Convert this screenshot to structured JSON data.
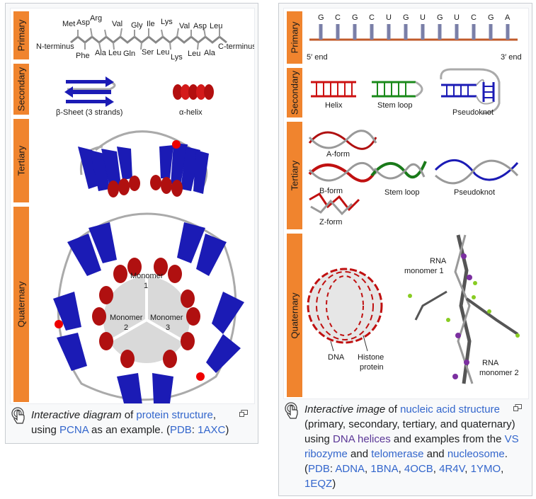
{
  "protein": {
    "tabs": [
      "Primary",
      "Secondary",
      "Tertiary",
      "Quaternary"
    ],
    "primary": {
      "residues_top": [
        "Met",
        "Asp",
        "Arg",
        "Val",
        "Gly",
        "Ile",
        "Lys",
        "Val",
        "Asp",
        "Leu"
      ],
      "residues_bottom": [
        "Phe",
        "Ala",
        "Leu",
        "Gln",
        "Ser",
        "Leu",
        "Lys",
        "Leu",
        "Ala"
      ],
      "n_terminus": "N-terminus",
      "c_terminus": "C-terminus"
    },
    "secondary": {
      "sheet_label": "β-Sheet (3 strands)",
      "helix_label": "α-helix"
    },
    "quaternary": {
      "monomer1": [
        "Monomer",
        "1"
      ],
      "monomer2": [
        "Monomer",
        "2"
      ],
      "monomer3": [
        "Monomer",
        "3"
      ]
    },
    "caption": {
      "italic": "Interactive diagram",
      "t1": " of ",
      "link1": "protein structure",
      "t2": ", using ",
      "link2": "PCNA",
      "t3": " as an example. (",
      "link3": "PDB",
      "t4": ": ",
      "link4": "1AXC",
      "t5": ")"
    }
  },
  "nucleic": {
    "tabs": [
      "Primary",
      "Secondary",
      "Tertiary",
      "Quaternary"
    ],
    "primary": {
      "bases": [
        "G",
        "C",
        "G",
        "C",
        "U",
        "G",
        "U",
        "G",
        "U",
        "C",
        "G",
        "A"
      ],
      "five_end": "5′ end",
      "three_end": "3′ end"
    },
    "secondary": {
      "helix_label": "Helix",
      "stem_loop_label": "Stem loop",
      "pseudoknot_label": "Pseudoknot"
    },
    "tertiary": {
      "a_form": "A-form",
      "b_form": "B-form",
      "z_form": "Z-form",
      "stem_loop": "Stem loop",
      "pseudoknot": "Pseudoknot"
    },
    "quaternary": {
      "dna": "DNA",
      "histone": [
        "Histone",
        "protein"
      ],
      "rna1": [
        "RNA",
        "monomer 1"
      ],
      "rna2": [
        "RNA",
        "monomer 2"
      ]
    },
    "caption": {
      "italic": "Interactive image",
      "t1": " of ",
      "link1": "nucleic acid structure",
      "t2": " (primary, secondary, tertiary, and quaternary) using ",
      "link2": "DNA helices",
      "t3": " and examples from the ",
      "link3": "VS ribozyme",
      "t4": " and ",
      "link4": "telomerase",
      "t5": " and ",
      "link5": "nucleosome",
      "t6": ". (",
      "link6": "PDB",
      "t7": ": ",
      "link7": "ADNA",
      "t8": ", ",
      "link8": "1BNA",
      "t9": ", ",
      "link9": "4OCB",
      "t10": ", ",
      "link10": "4R4V",
      "t11": ", ",
      "link11": "1YMO",
      "t12": ", ",
      "link12": "1EQZ",
      "t13": ")"
    }
  },
  "colors": {
    "tab": "#f0842e",
    "sheet": "#1b1bb5",
    "helix": "#cc1111",
    "stem": "#1a8a1a",
    "link": "#3366cc",
    "link_visited": "#5a3696",
    "monomer_disc": "#d9d9d9"
  },
  "icons": [
    "pointer-hand-icon",
    "enlarge-icon"
  ]
}
